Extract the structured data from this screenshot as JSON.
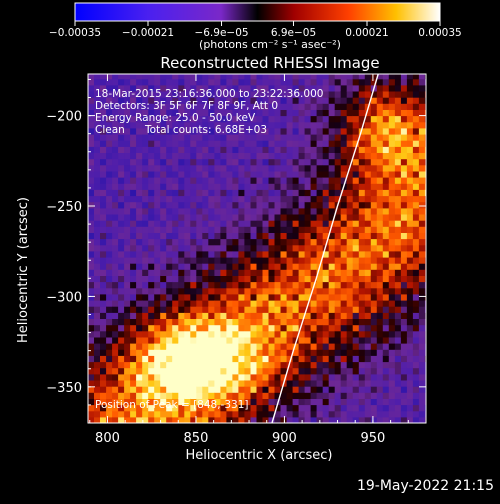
{
  "colorbar": {
    "ticks": [
      -0.00035,
      -0.00021,
      -6.9e-05,
      6.9e-05,
      0.00021,
      0.00035
    ],
    "tick_labels": [
      "−0.00035",
      "−0.00021",
      "−6.9e−05",
      "6.9e−05",
      "0.00021",
      "0.00035"
    ],
    "units": "(photons cm⁻² s⁻¹ asec⁻²)",
    "range": [
      -0.00035,
      0.00035
    ]
  },
  "chart_data": {
    "type": "heatmap",
    "title": "Reconstructed RHESSI Image",
    "xlabel": "Heliocentric X (arcsec)",
    "ylabel": "Heliocentric Y (arcsec)",
    "xlim": [
      789,
      980
    ],
    "ylim": [
      -370,
      -177
    ],
    "xticks": [
      800,
      850,
      900,
      950
    ],
    "yticks": [
      -200,
      -250,
      -300,
      -350
    ],
    "annotations": {
      "time_range": "18-Mar-2015 23:16:36.000 to 23:22:36.000",
      "detectors": "Detectors: 3F 5F 6F 7F 8F 9F, Att 0",
      "energy": "Energy Range: 25.0 - 50.0 keV",
      "method": "Clean",
      "counts": "Total counts: 6.68E+03",
      "peak": "Position of Peak = [848,-331]"
    },
    "peak": [
      848,
      -331
    ],
    "limb_curve": [
      [
        893,
        -370
      ],
      [
        905,
        -330
      ],
      [
        918,
        -290
      ],
      [
        930,
        -250
      ],
      [
        943,
        -210
      ],
      [
        953,
        -177
      ]
    ]
  },
  "footer": {
    "timestamp": "19-May-2022 21:15"
  }
}
